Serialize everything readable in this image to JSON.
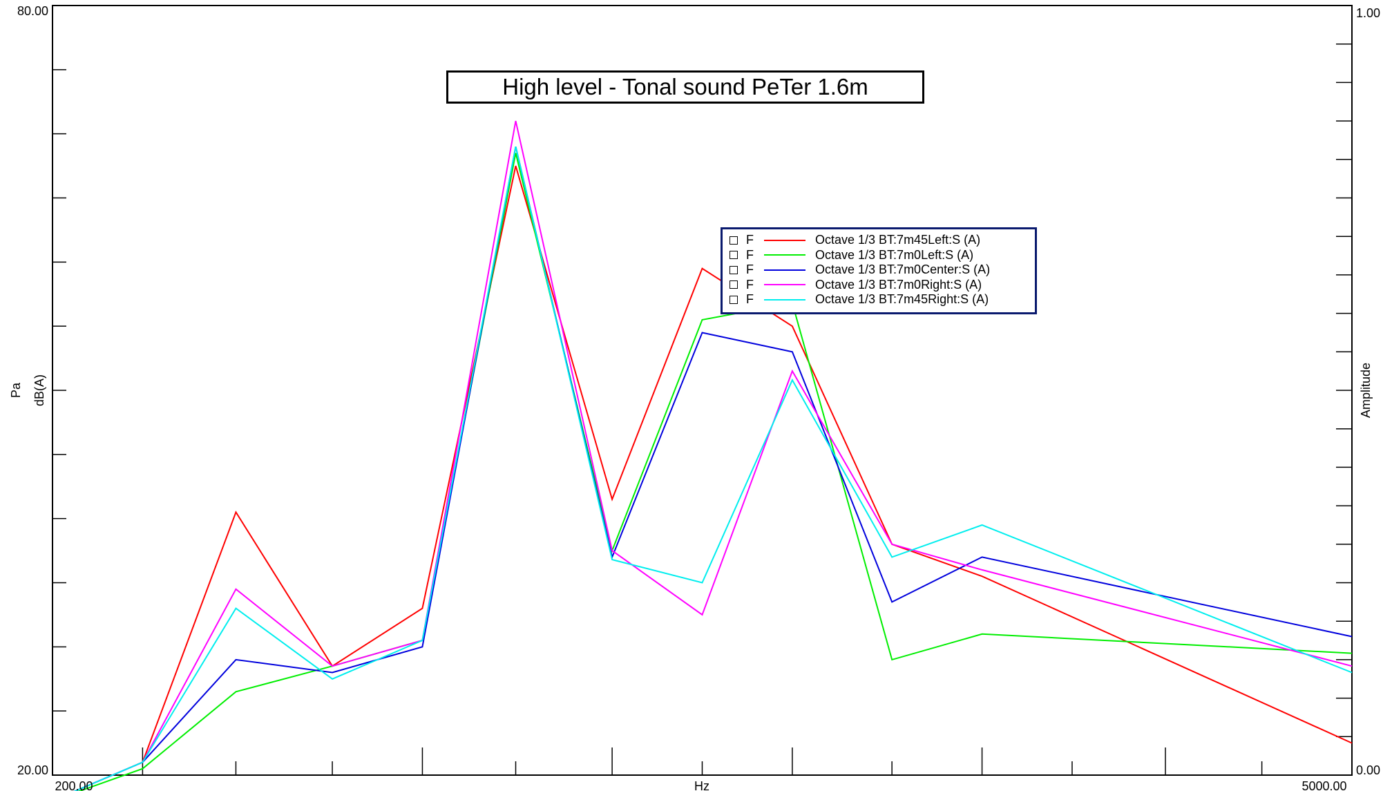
{
  "chart_data": {
    "type": "line",
    "title": "High level - Tonal sound PeTer 1.6m",
    "xlabel": "Hz",
    "ylabel_outer": "Pa",
    "ylabel_inner": "dB(A)",
    "y2label": "Amplitude",
    "xlim": [
      200.0,
      5000.0
    ],
    "ylim": [
      20.0,
      80.0
    ],
    "y2lim": [
      0.0,
      1.0
    ],
    "x_tick_labels": [
      "200.00",
      "5000.00"
    ],
    "y_tick_labels": [
      "80.00",
      "20.00"
    ],
    "y2_tick_labels": [
      "1.00",
      "0.00"
    ],
    "x_scale": "log",
    "grid": false,
    "legend_position": "right-center",
    "legend_flag": "F",
    "x": [
      200,
      250,
      315,
      400,
      500,
      630,
      800,
      1000,
      1250,
      1600,
      2000,
      2500,
      3150,
      4000,
      5000
    ],
    "series": [
      {
        "name": "Octave 1/3 BT:7m45Left:S (A)",
        "color": "#ff0000",
        "values": [
          18.0,
          21.0,
          40.5,
          28.5,
          33.0,
          67.5,
          41.5,
          59.5,
          55.0,
          38.0,
          35.5,
          null,
          null,
          null,
          22.5
        ]
      },
      {
        "name": "Octave 1/3 BT:7m0Left:S (A)",
        "color": "#00ee00",
        "values": [
          18.0,
          20.5,
          26.5,
          28.5,
          30.5,
          68.5,
          37.5,
          55.5,
          56.8,
          29.0,
          31.0,
          null,
          null,
          null,
          29.5
        ]
      },
      {
        "name": "Octave 1/3 BT:7m0Center:S (A)",
        "color": "#0000dd",
        "values": [
          18.0,
          21.0,
          29.0,
          28.0,
          30.0,
          69.0,
          37.0,
          54.5,
          53.0,
          33.5,
          37.0,
          null,
          null,
          null,
          30.8
        ]
      },
      {
        "name": "Octave 1/3 BT:7m0Right:S (A)",
        "color": "#ff00ff",
        "values": [
          18.0,
          21.0,
          34.5,
          28.5,
          30.5,
          71.0,
          37.5,
          32.5,
          51.5,
          38.0,
          36.0,
          null,
          null,
          null,
          28.5
        ]
      },
      {
        "name": "Octave 1/3 BT:7m45Right:S (A)",
        "color": "#00eeee",
        "values": [
          18.0,
          21.0,
          33.0,
          27.5,
          30.5,
          69.0,
          36.8,
          35.0,
          50.8,
          37.0,
          39.5,
          null,
          null,
          null,
          28.0
        ]
      }
    ]
  }
}
